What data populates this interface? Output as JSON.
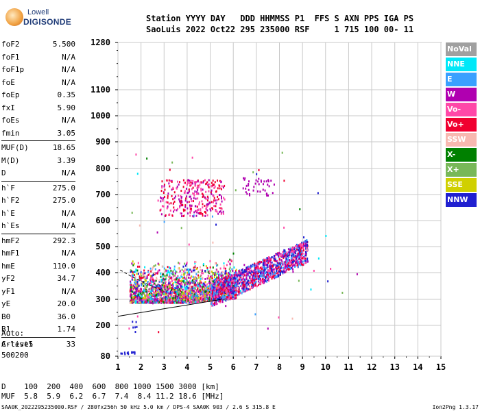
{
  "logo": {
    "line1": "Lowell",
    "line2": "DIGISONDE"
  },
  "header": {
    "line1": "Station YYYY DAY   DDD HHMMSS P1  FFS S AXN PPS IGA PS",
    "line2": "SaoLuis 2022 Oct22 295 235000 RSF     1 715 100 00- 11"
  },
  "params": [
    {
      "k": "foF2",
      "v": "5.500"
    },
    {
      "k": "foF1",
      "v": "N/A"
    },
    {
      "k": "foF1p",
      "v": "N/A"
    },
    {
      "k": "foE",
      "v": "N/A"
    },
    {
      "k": "foEp",
      "v": "0.35"
    },
    {
      "k": "fxI",
      "v": "5.90"
    },
    {
      "k": "foEs",
      "v": "N/A"
    },
    {
      "k": "fmin",
      "v": "3.05"
    },
    {
      "sep": true
    },
    {
      "k": "MUF(D)",
      "v": "18.65"
    },
    {
      "k": "M(D)",
      "v": "3.39"
    },
    {
      "k": "D",
      "v": "N/A"
    },
    {
      "sep": true
    },
    {
      "k": "h`F",
      "v": "275.0"
    },
    {
      "k": "h`F2",
      "v": "275.0"
    },
    {
      "k": "h`E",
      "v": "N/A"
    },
    {
      "k": "h`Es",
      "v": "N/A"
    },
    {
      "sep": true
    },
    {
      "k": "hmF2",
      "v": "292.3"
    },
    {
      "k": "hmF1",
      "v": "N/A"
    },
    {
      "k": "hmE",
      "v": "110.0"
    },
    {
      "k": "yF2",
      "v": "34.7"
    },
    {
      "k": "yF1",
      "v": "N/A"
    },
    {
      "k": "yE",
      "v": "20.0"
    },
    {
      "k": "B0",
      "v": "36.0"
    },
    {
      "k": "B1",
      "v": "1.74"
    },
    {
      "sep": true
    },
    {
      "k": "C-level",
      "v": "33"
    }
  ],
  "auto": {
    "line1": "Auto:",
    "line2": "Artist5",
    "line3": "500200"
  },
  "legend": [
    {
      "label": "NoVal",
      "color": "#a0a0a0"
    },
    {
      "label": "NNE",
      "color": "#00e8f8"
    },
    {
      "label": "E",
      "color": "#3aa0ff"
    },
    {
      "label": "W",
      "color": "#b000b0"
    },
    {
      "label": "Vo-",
      "color": "#ff48a8"
    },
    {
      "label": "Vo+",
      "color": "#f00030"
    },
    {
      "label": "SSW",
      "color": "#f8b8b0"
    },
    {
      "label": "X-",
      "color": "#008000"
    },
    {
      "label": "X+",
      "color": "#78b858"
    },
    {
      "label": "SSE",
      "color": "#d0d000"
    },
    {
      "label": "NNW",
      "color": "#2020d0"
    }
  ],
  "chart_data": {
    "type": "scatter",
    "x_ticks": [
      "1",
      "2",
      "3",
      "4",
      "5",
      "6",
      "7",
      "8",
      "9",
      "10",
      "11",
      "12",
      "13",
      "14",
      "15"
    ],
    "y_ticks": [
      "80",
      "200",
      "300",
      "400",
      "500",
      "600",
      "700",
      "800",
      "900",
      "1000",
      "1100",
      "1280"
    ],
    "xlim": [
      1,
      15
    ],
    "ylim": [
      80,
      1280
    ],
    "y_scale": "reciprocal",
    "grid": true,
    "legend": "right"
  },
  "footer": {
    "line1": "D    100  200  400  600  800 1000 1500 3000 [km]",
    "line2": "MUF  5.8  5.9  6.2  6.7  7.4  8.4 11.2 18.6 [MHz]",
    "file": "SAA0K_2022295235000.RSF / 280fx256h 50 kHz 5.0 km / DPS-4 SAA0K 903 / 2.6 S 315.8 E",
    "version": "Ion2Png 1.3.17"
  }
}
